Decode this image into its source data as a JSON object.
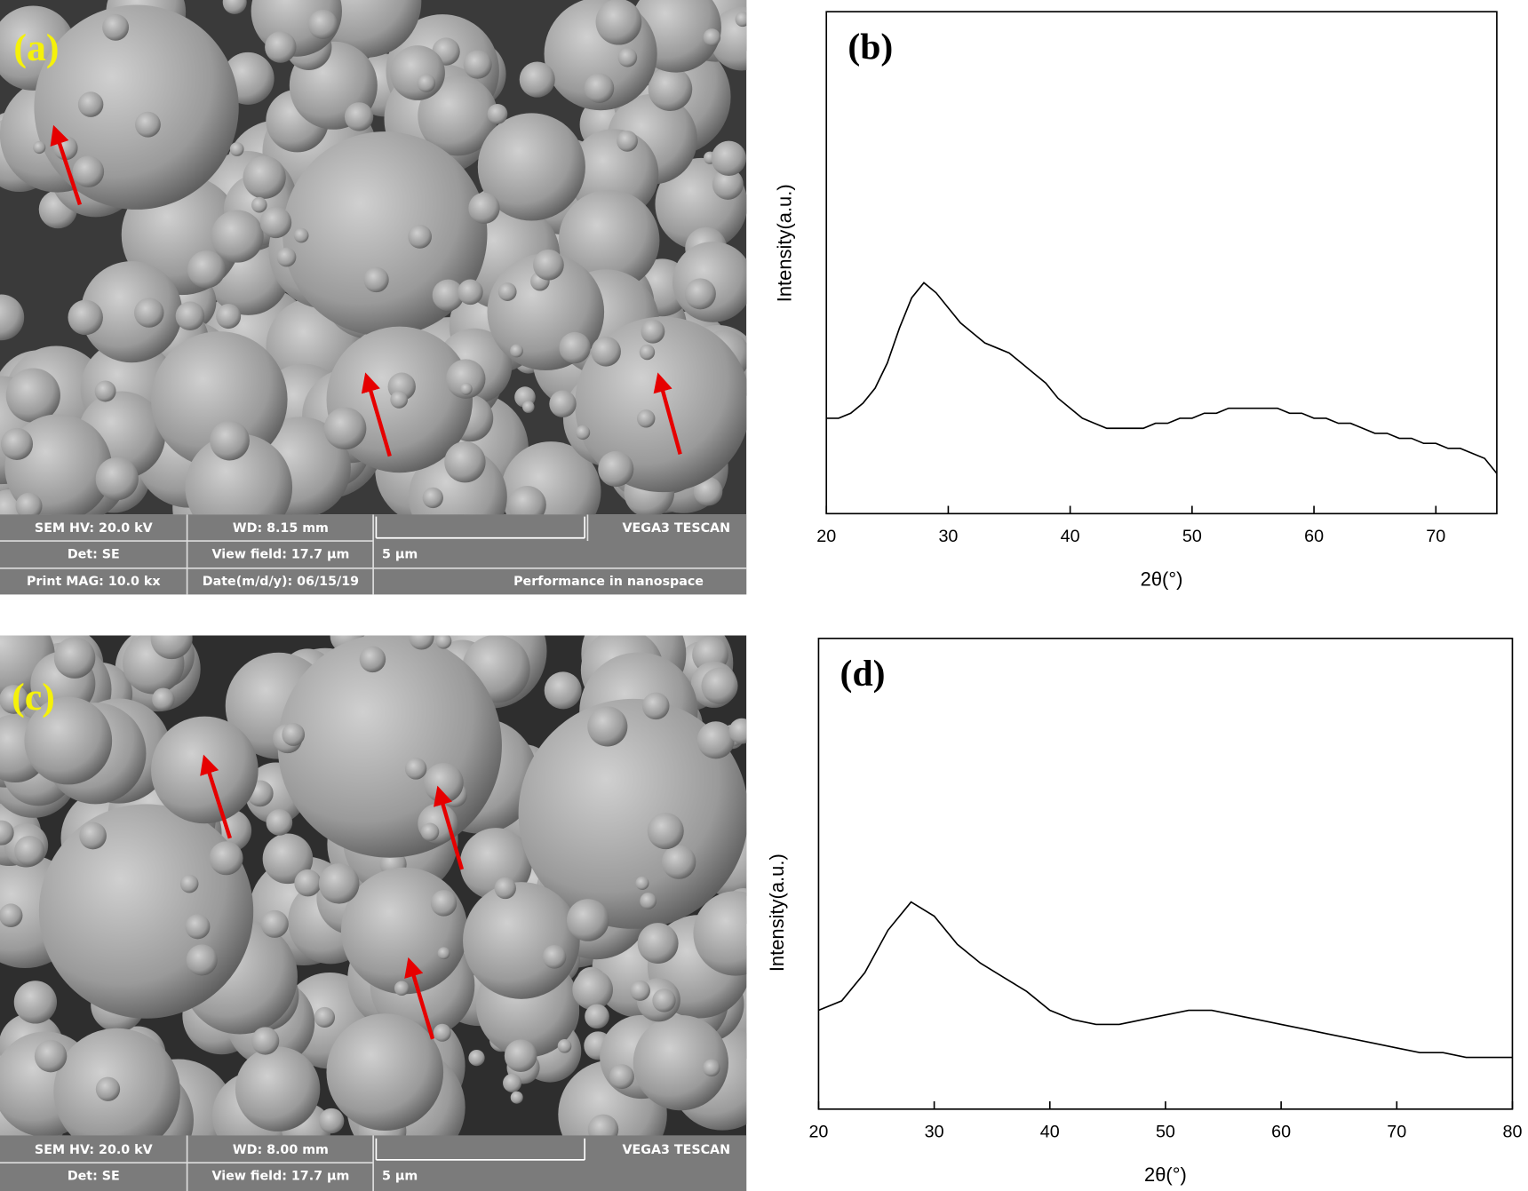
{
  "sem_panels": [
    {
      "label": "(a)",
      "info": [
        "SEM HV: 20.0 kV",
        "WD: 8.15 mm",
        "VEGA3 TESCAN",
        "Det: SE",
        "View field: 17.7 µm",
        "5 µm",
        "Print MAG: 10.0 kx",
        "Date(m/d/y): 06/15/19",
        "Performance in nanospace"
      ]
    },
    {
      "label": "(c)",
      "info": [
        "SEM HV: 20.0 kV",
        "WD: 8.00 mm",
        "VEGA3 TESCAN",
        "Det: SE",
        "View field: 17.7 µm",
        "5 µm"
      ]
    }
  ],
  "chart_data": [
    {
      "type": "line",
      "title": "(b)",
      "x_label": "2θ(°)",
      "y_label": "Intensity(a.u.)",
      "x": [
        20,
        21,
        22,
        23,
        24,
        25,
        26,
        27,
        28,
        29,
        30,
        31,
        32,
        33,
        34,
        35,
        36,
        37,
        38,
        39,
        40,
        41,
        42,
        43,
        44,
        45,
        46,
        47,
        48,
        49,
        50,
        51,
        52,
        53,
        54,
        55,
        56,
        57,
        58,
        59,
        60,
        61,
        62,
        63,
        64,
        65,
        66,
        67,
        68,
        69,
        70,
        71,
        72,
        73,
        74,
        75
      ],
      "series": [
        {
          "color": "#000000",
          "values": [
            19,
            19,
            20,
            22,
            25,
            30,
            37,
            43,
            46,
            44,
            41,
            38,
            36,
            34,
            33,
            32,
            30,
            28,
            26,
            23,
            21,
            19,
            18,
            17,
            17,
            17,
            17,
            18,
            18,
            19,
            19,
            20,
            20,
            21,
            21,
            21,
            21,
            21,
            20,
            20,
            19,
            19,
            18,
            18,
            17,
            16,
            16,
            15,
            15,
            14,
            14,
            13,
            13,
            12,
            11,
            8
          ]
        }
      ],
      "xlim": [
        20,
        75
      ],
      "xticks": [
        20,
        30,
        40,
        50,
        60,
        70
      ],
      "ylim": [
        0,
        100
      ]
    },
    {
      "type": "line",
      "title": "(d)",
      "x_label": "2θ(°)",
      "y_label": "Intensity(a.u.)",
      "x": [
        20,
        22,
        24,
        26,
        28,
        30,
        32,
        34,
        36,
        38,
        40,
        42,
        44,
        46,
        48,
        50,
        52,
        54,
        56,
        58,
        60,
        62,
        64,
        66,
        68,
        70,
        72,
        74,
        76,
        78,
        80
      ],
      "series": [
        {
          "color": "#000000",
          "values": [
            21,
            23,
            29,
            38,
            44,
            41,
            35,
            31,
            28,
            25,
            21,
            19,
            18,
            18,
            19,
            20,
            21,
            21,
            20,
            19,
            18,
            17,
            16,
            15,
            14,
            13,
            12,
            12,
            11,
            11,
            11
          ]
        }
      ],
      "xlim": [
        20,
        80
      ],
      "xticks": [
        20,
        30,
        40,
        50,
        60,
        70,
        80
      ],
      "ylim": [
        0,
        100
      ]
    }
  ]
}
